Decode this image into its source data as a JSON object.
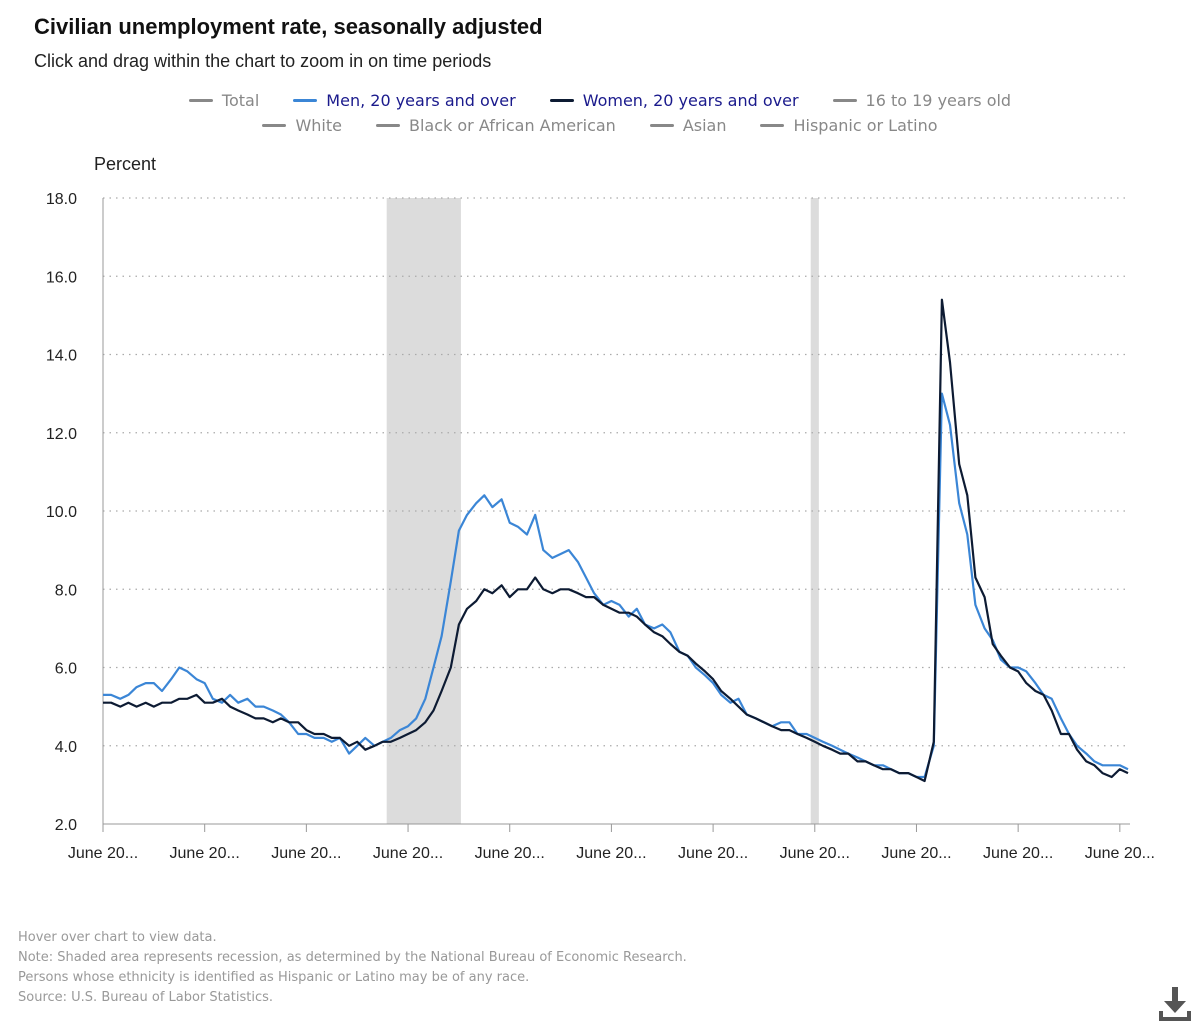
{
  "header": {
    "title": "Civilian unemployment rate, seasonally adjusted",
    "subtitle": "Click and drag within the chart to zoom in on time periods"
  },
  "legend": {
    "row1": [
      {
        "label": "Total",
        "color": "#888888",
        "active": false
      },
      {
        "label": "Men, 20 years and over",
        "color": "#3b86d6",
        "active": true
      },
      {
        "label": "Women, 20 years and over",
        "color": "#0d1b33",
        "active": true
      },
      {
        "label": "16 to 19 years old",
        "color": "#888888",
        "active": false
      }
    ],
    "row2": [
      {
        "label": "White",
        "color": "#888888",
        "active": false
      },
      {
        "label": "Black or African American",
        "color": "#888888",
        "active": false
      },
      {
        "label": "Asian",
        "color": "#888888",
        "active": false
      },
      {
        "label": "Hispanic or Latino",
        "color": "#888888",
        "active": false
      }
    ]
  },
  "chart_data": {
    "type": "line",
    "title": "Civilian unemployment rate, seasonally adjusted",
    "ylabel": "Percent",
    "xlabel": "",
    "ylim": [
      2.0,
      18.0
    ],
    "yticks": [
      "2.0",
      "4.0",
      "6.0",
      "8.0",
      "10.0",
      "12.0",
      "14.0",
      "16.0",
      "18.0"
    ],
    "xticks": [
      "June 20...",
      "June 20...",
      "June 20...",
      "June 20...",
      "June 20...",
      "June 20...",
      "June 20...",
      "June 20...",
      "June 20...",
      "June 20...",
      "June 20..."
    ],
    "xlim": [
      2012,
      2022.1
    ],
    "grid": true,
    "recessions": [
      [
        2014.79,
        2015.52
      ],
      [
        2018.96,
        2019.04
      ]
    ],
    "series": [
      {
        "name": "Men, 20 years and over",
        "color": "#3b86d6",
        "points": [
          [
            2012.0,
            5.3
          ],
          [
            2012.08,
            5.3
          ],
          [
            2012.17,
            5.2
          ],
          [
            2012.25,
            5.3
          ],
          [
            2012.33,
            5.5
          ],
          [
            2012.42,
            5.6
          ],
          [
            2012.5,
            5.6
          ],
          [
            2012.58,
            5.4
          ],
          [
            2012.67,
            5.7
          ],
          [
            2012.75,
            6.0
          ],
          [
            2012.83,
            5.9
          ],
          [
            2012.92,
            5.7
          ],
          [
            2013.0,
            5.6
          ],
          [
            2013.08,
            5.2
          ],
          [
            2013.17,
            5.1
          ],
          [
            2013.25,
            5.3
          ],
          [
            2013.33,
            5.1
          ],
          [
            2013.42,
            5.2
          ],
          [
            2013.5,
            5.0
          ],
          [
            2013.58,
            5.0
          ],
          [
            2013.67,
            4.9
          ],
          [
            2013.75,
            4.8
          ],
          [
            2013.83,
            4.6
          ],
          [
            2013.92,
            4.3
          ],
          [
            2014.0,
            4.3
          ],
          [
            2014.08,
            4.2
          ],
          [
            2014.17,
            4.2
          ],
          [
            2014.25,
            4.1
          ],
          [
            2014.33,
            4.2
          ],
          [
            2014.42,
            3.8
          ],
          [
            2014.5,
            4.0
          ],
          [
            2014.58,
            4.2
          ],
          [
            2014.67,
            4.0
          ],
          [
            2014.75,
            4.1
          ],
          [
            2014.83,
            4.2
          ],
          [
            2014.92,
            4.4
          ],
          [
            2015.0,
            4.5
          ],
          [
            2015.08,
            4.7
          ],
          [
            2015.17,
            5.2
          ],
          [
            2015.25,
            6.0
          ],
          [
            2015.33,
            6.8
          ],
          [
            2015.42,
            8.2
          ],
          [
            2015.5,
            9.5
          ],
          [
            2015.58,
            9.9
          ],
          [
            2015.67,
            10.2
          ],
          [
            2015.75,
            10.4
          ],
          [
            2015.83,
            10.1
          ],
          [
            2015.92,
            10.3
          ],
          [
            2016.0,
            9.7
          ],
          [
            2016.08,
            9.6
          ],
          [
            2016.17,
            9.4
          ],
          [
            2016.25,
            9.9
          ],
          [
            2016.33,
            9.0
          ],
          [
            2016.42,
            8.8
          ],
          [
            2016.5,
            8.9
          ],
          [
            2016.58,
            9.0
          ],
          [
            2016.67,
            8.7
          ],
          [
            2016.75,
            8.3
          ],
          [
            2016.83,
            7.9
          ],
          [
            2016.92,
            7.6
          ],
          [
            2017.0,
            7.7
          ],
          [
            2017.08,
            7.6
          ],
          [
            2017.17,
            7.3
          ],
          [
            2017.25,
            7.5
          ],
          [
            2017.33,
            7.1
          ],
          [
            2017.42,
            7.0
          ],
          [
            2017.5,
            7.1
          ],
          [
            2017.58,
            6.9
          ],
          [
            2017.67,
            6.4
          ],
          [
            2017.75,
            6.3
          ],
          [
            2017.83,
            6.0
          ],
          [
            2017.92,
            5.8
          ],
          [
            2018.0,
            5.6
          ],
          [
            2018.08,
            5.3
          ],
          [
            2018.17,
            5.1
          ],
          [
            2018.25,
            5.2
          ],
          [
            2018.33,
            4.8
          ],
          [
            2018.42,
            4.7
          ],
          [
            2018.5,
            4.6
          ],
          [
            2018.58,
            4.5
          ],
          [
            2018.67,
            4.6
          ],
          [
            2018.75,
            4.6
          ],
          [
            2018.83,
            4.3
          ],
          [
            2018.92,
            4.3
          ],
          [
            2019.0,
            4.2
          ],
          [
            2019.08,
            4.1
          ],
          [
            2019.17,
            4.0
          ],
          [
            2019.25,
            3.9
          ],
          [
            2019.33,
            3.8
          ],
          [
            2019.42,
            3.7
          ],
          [
            2019.5,
            3.6
          ],
          [
            2019.58,
            3.5
          ],
          [
            2019.67,
            3.5
          ],
          [
            2019.75,
            3.4
          ],
          [
            2019.83,
            3.3
          ],
          [
            2019.92,
            3.3
          ],
          [
            2020.0,
            3.2
          ],
          [
            2020.08,
            3.2
          ],
          [
            2020.17,
            4.0
          ],
          [
            2020.25,
            13.0
          ],
          [
            2020.33,
            12.2
          ],
          [
            2020.42,
            10.2
          ],
          [
            2020.5,
            9.4
          ],
          [
            2020.58,
            7.6
          ],
          [
            2020.67,
            7.0
          ],
          [
            2020.75,
            6.7
          ],
          [
            2020.83,
            6.2
          ],
          [
            2020.92,
            6.0
          ],
          [
            2021.0,
            6.0
          ],
          [
            2021.08,
            5.9
          ],
          [
            2021.17,
            5.6
          ],
          [
            2021.25,
            5.3
          ],
          [
            2021.33,
            5.2
          ],
          [
            2021.42,
            4.7
          ],
          [
            2021.5,
            4.3
          ],
          [
            2021.58,
            4.0
          ],
          [
            2021.67,
            3.8
          ],
          [
            2021.75,
            3.6
          ],
          [
            2021.83,
            3.5
          ],
          [
            2021.92,
            3.5
          ],
          [
            2022.0,
            3.5
          ],
          [
            2022.08,
            3.4
          ]
        ]
      },
      {
        "name": "Women, 20 years and over",
        "color": "#0d1b33",
        "points": [
          [
            2012.0,
            5.1
          ],
          [
            2012.08,
            5.1
          ],
          [
            2012.17,
            5.0
          ],
          [
            2012.25,
            5.1
          ],
          [
            2012.33,
            5.0
          ],
          [
            2012.42,
            5.1
          ],
          [
            2012.5,
            5.0
          ],
          [
            2012.58,
            5.1
          ],
          [
            2012.67,
            5.1
          ],
          [
            2012.75,
            5.2
          ],
          [
            2012.83,
            5.2
          ],
          [
            2012.92,
            5.3
          ],
          [
            2013.0,
            5.1
          ],
          [
            2013.08,
            5.1
          ],
          [
            2013.17,
            5.2
          ],
          [
            2013.25,
            5.0
          ],
          [
            2013.33,
            4.9
          ],
          [
            2013.42,
            4.8
          ],
          [
            2013.5,
            4.7
          ],
          [
            2013.58,
            4.7
          ],
          [
            2013.67,
            4.6
          ],
          [
            2013.75,
            4.7
          ],
          [
            2013.83,
            4.6
          ],
          [
            2013.92,
            4.6
          ],
          [
            2014.0,
            4.4
          ],
          [
            2014.08,
            4.3
          ],
          [
            2014.17,
            4.3
          ],
          [
            2014.25,
            4.2
          ],
          [
            2014.33,
            4.2
          ],
          [
            2014.42,
            4.0
          ],
          [
            2014.5,
            4.1
          ],
          [
            2014.58,
            3.9
          ],
          [
            2014.67,
            4.0
          ],
          [
            2014.75,
            4.1
          ],
          [
            2014.83,
            4.1
          ],
          [
            2014.92,
            4.2
          ],
          [
            2015.0,
            4.3
          ],
          [
            2015.08,
            4.4
          ],
          [
            2015.17,
            4.6
          ],
          [
            2015.25,
            4.9
          ],
          [
            2015.33,
            5.4
          ],
          [
            2015.42,
            6.0
          ],
          [
            2015.5,
            7.1
          ],
          [
            2015.58,
            7.5
          ],
          [
            2015.67,
            7.7
          ],
          [
            2015.75,
            8.0
          ],
          [
            2015.83,
            7.9
          ],
          [
            2015.92,
            8.1
          ],
          [
            2016.0,
            7.8
          ],
          [
            2016.08,
            8.0
          ],
          [
            2016.17,
            8.0
          ],
          [
            2016.25,
            8.3
          ],
          [
            2016.33,
            8.0
          ],
          [
            2016.42,
            7.9
          ],
          [
            2016.5,
            8.0
          ],
          [
            2016.58,
            8.0
          ],
          [
            2016.67,
            7.9
          ],
          [
            2016.75,
            7.8
          ],
          [
            2016.83,
            7.8
          ],
          [
            2016.92,
            7.6
          ],
          [
            2017.0,
            7.5
          ],
          [
            2017.08,
            7.4
          ],
          [
            2017.17,
            7.4
          ],
          [
            2017.25,
            7.3
          ],
          [
            2017.33,
            7.1
          ],
          [
            2017.42,
            6.9
          ],
          [
            2017.5,
            6.8
          ],
          [
            2017.58,
            6.6
          ],
          [
            2017.67,
            6.4
          ],
          [
            2017.75,
            6.3
          ],
          [
            2017.83,
            6.1
          ],
          [
            2017.92,
            5.9
          ],
          [
            2018.0,
            5.7
          ],
          [
            2018.08,
            5.4
          ],
          [
            2018.17,
            5.2
          ],
          [
            2018.25,
            5.0
          ],
          [
            2018.33,
            4.8
          ],
          [
            2018.42,
            4.7
          ],
          [
            2018.5,
            4.6
          ],
          [
            2018.58,
            4.5
          ],
          [
            2018.67,
            4.4
          ],
          [
            2018.75,
            4.4
          ],
          [
            2018.83,
            4.3
          ],
          [
            2018.92,
            4.2
          ],
          [
            2019.0,
            4.1
          ],
          [
            2019.08,
            4.0
          ],
          [
            2019.17,
            3.9
          ],
          [
            2019.25,
            3.8
          ],
          [
            2019.33,
            3.8
          ],
          [
            2019.42,
            3.6
          ],
          [
            2019.5,
            3.6
          ],
          [
            2019.58,
            3.5
          ],
          [
            2019.67,
            3.4
          ],
          [
            2019.75,
            3.4
          ],
          [
            2019.83,
            3.3
          ],
          [
            2019.92,
            3.3
          ],
          [
            2020.0,
            3.2
          ],
          [
            2020.08,
            3.1
          ],
          [
            2020.17,
            4.1
          ],
          [
            2020.25,
            15.4
          ],
          [
            2020.33,
            13.8
          ],
          [
            2020.42,
            11.2
          ],
          [
            2020.5,
            10.4
          ],
          [
            2020.58,
            8.3
          ],
          [
            2020.67,
            7.8
          ],
          [
            2020.75,
            6.6
          ],
          [
            2020.83,
            6.3
          ],
          [
            2020.92,
            6.0
          ],
          [
            2021.0,
            5.9
          ],
          [
            2021.08,
            5.6
          ],
          [
            2021.17,
            5.4
          ],
          [
            2021.25,
            5.3
          ],
          [
            2021.33,
            4.9
          ],
          [
            2021.42,
            4.3
          ],
          [
            2021.5,
            4.3
          ],
          [
            2021.58,
            3.9
          ],
          [
            2021.67,
            3.6
          ],
          [
            2021.75,
            3.5
          ],
          [
            2021.83,
            3.3
          ],
          [
            2021.92,
            3.2
          ],
          [
            2022.0,
            3.4
          ],
          [
            2022.08,
            3.3
          ]
        ]
      }
    ]
  },
  "footnotes": {
    "line1": "Hover over chart to view data.",
    "line2": "Note: Shaded area represents recession, as determined by the National Bureau of Economic Research.",
    "line3": "Persons whose ethnicity is identified as Hispanic or Latino may be of any race.",
    "line4": "Source: U.S. Bureau of Labor Statistics."
  },
  "icons": {
    "download": "download-icon"
  }
}
